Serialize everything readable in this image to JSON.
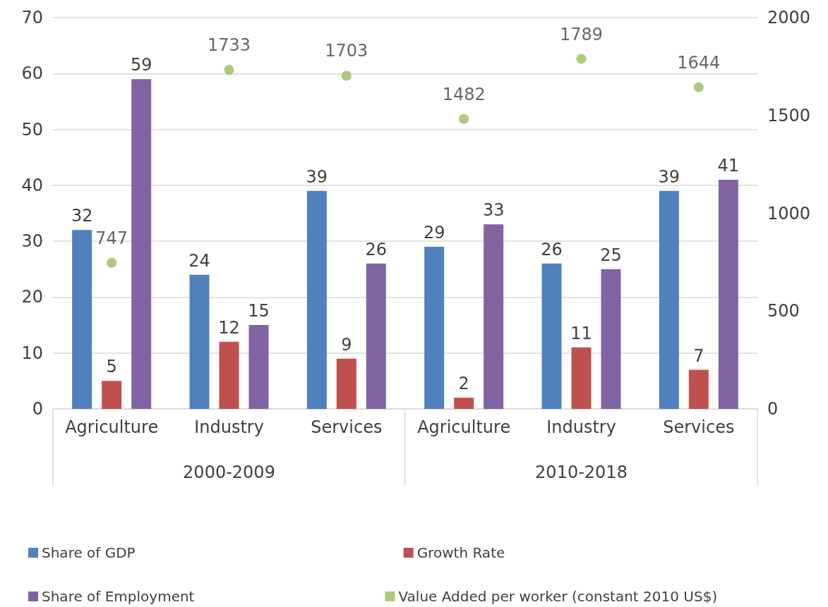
{
  "chart_data": {
    "type": "bar",
    "categories": [
      "Agriculture",
      "Industry",
      "Services",
      "Agriculture",
      "Industry",
      "Services"
    ],
    "annotations": [
      "2000-2009",
      "2010-2018"
    ],
    "series": [
      {
        "name": "Share of GDP",
        "color": "#4f81bd",
        "values": [
          32,
          24,
          39,
          29,
          26,
          39
        ]
      },
      {
        "name": "Growth Rate",
        "color": "#c0504d",
        "values": [
          5,
          12,
          9,
          2,
          11,
          7
        ]
      },
      {
        "name": "Share of Employment",
        "color": "#8064a2",
        "values": [
          59,
          15,
          26,
          33,
          25,
          41
        ]
      },
      {
        "name": "Value Added per worker (constant 2010 US$)",
        "type": "scatter",
        "axis": "y2",
        "color": "#9bbb59",
        "marker": "circle",
        "values": [
          747,
          1733,
          1703,
          1482,
          1789,
          1644
        ]
      }
    ],
    "ylim": [
      0,
      70
    ],
    "yticks": [
      0,
      10,
      20,
      30,
      40,
      50,
      60,
      70
    ],
    "y2lim": [
      0,
      2000
    ],
    "y2ticks": [
      0,
      500,
      1000,
      1500,
      2000
    ],
    "grid": "y",
    "legend": "bottom",
    "data_labels": true
  }
}
